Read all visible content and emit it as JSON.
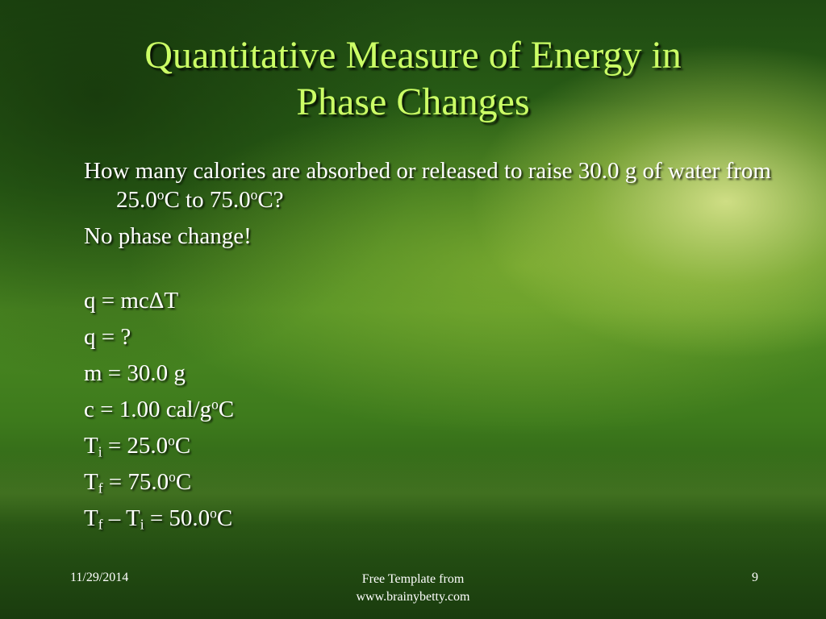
{
  "slide": {
    "title_line1": "Quantitative Measure of Energy in",
    "title_line2": "Phase Changes",
    "question_part1": "How many calories are absorbed or released to raise 30.0 g of water from 25.0",
    "question_deg1": "o",
    "question_part2": "C to 75.0",
    "question_deg2": "o",
    "question_part3": "C?",
    "no_phase_change": "No phase change!",
    "eq_formula": "q = mcΔT",
    "eq_q": "q = ?",
    "eq_m": "m = 30.0 g",
    "eq_c_prefix": "c = 1.00 cal/g",
    "eq_c_deg": "o",
    "eq_c_suffix": "C",
    "ti_symbol": "T",
    "ti_sub": "i",
    "ti_value": " = 25.0",
    "ti_deg": "o",
    "ti_unit": "C",
    "tf_symbol": "T",
    "tf_sub": "f",
    "tf_value": " = 75.0",
    "tf_deg": "o",
    "tf_unit": "C",
    "diff_symbol1": "T",
    "diff_sub1": "f",
    "diff_minus": " – T",
    "diff_sub2": "i",
    "diff_value": " = 50.0",
    "diff_deg": "o",
    "diff_unit": "C"
  },
  "footer": {
    "date": "11/29/2014",
    "center_line1": "Free Template from",
    "center_line2": "www.brainybetty.com",
    "page_number": "9"
  }
}
